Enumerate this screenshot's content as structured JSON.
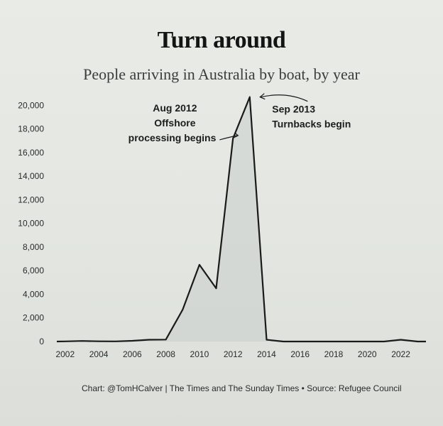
{
  "title": "Turn around",
  "subtitle": "People arriving in Australia by boat, by year",
  "credit": "Chart: @TomHCalver | The Times and The Sunday Times • Source: Refugee Council",
  "chart_data": {
    "type": "area",
    "title": "Turn around",
    "subtitle": "People arriving in Australia by boat, by year",
    "xlabel": "",
    "ylabel": "",
    "xlim": [
      2001.5,
      2023.5
    ],
    "ylim": [
      0,
      20500
    ],
    "grid": false,
    "x": [
      2001.5,
      2002,
      2003,
      2004,
      2005,
      2006,
      2007,
      2008,
      2009,
      2010,
      2011,
      2012,
      2013,
      2014,
      2015,
      2016,
      2017,
      2018,
      2019,
      2020,
      2021,
      2022,
      2023,
      2023.5
    ],
    "values": [
      0,
      10,
      50,
      20,
      10,
      60,
      150,
      160,
      2700,
      6500,
      4500,
      17200,
      20700,
      150,
      0,
      0,
      0,
      0,
      0,
      0,
      0,
      150,
      0,
      0
    ],
    "yticks": [
      0,
      2000,
      4000,
      6000,
      8000,
      10000,
      12000,
      14000,
      16000,
      18000,
      20000
    ],
    "ytick_labels": [
      "0",
      "2,000",
      "4,000",
      "6,000",
      "8,000",
      "10,000",
      "12,000",
      "14,000",
      "16,000",
      "18,000",
      "20,000"
    ],
    "xticks": [
      2002,
      2004,
      2006,
      2008,
      2010,
      2012,
      2014,
      2016,
      2018,
      2020,
      2022
    ],
    "xtick_labels": [
      "2002",
      "2004",
      "2006",
      "2008",
      "2010",
      "2012",
      "2014",
      "2016",
      "2018",
      "2020",
      "2022"
    ],
    "annotations": [
      {
        "lines": [
          "Aug 2012",
          "Offshore",
          "processing begins"
        ],
        "x": 2012.6,
        "y": 17200,
        "align": "right",
        "arrow": "right"
      },
      {
        "lines": [
          "Sep 2013",
          "Turnbacks begin"
        ],
        "x": 2013.4,
        "y": 20700,
        "align": "left",
        "arrow": "left"
      }
    ]
  }
}
